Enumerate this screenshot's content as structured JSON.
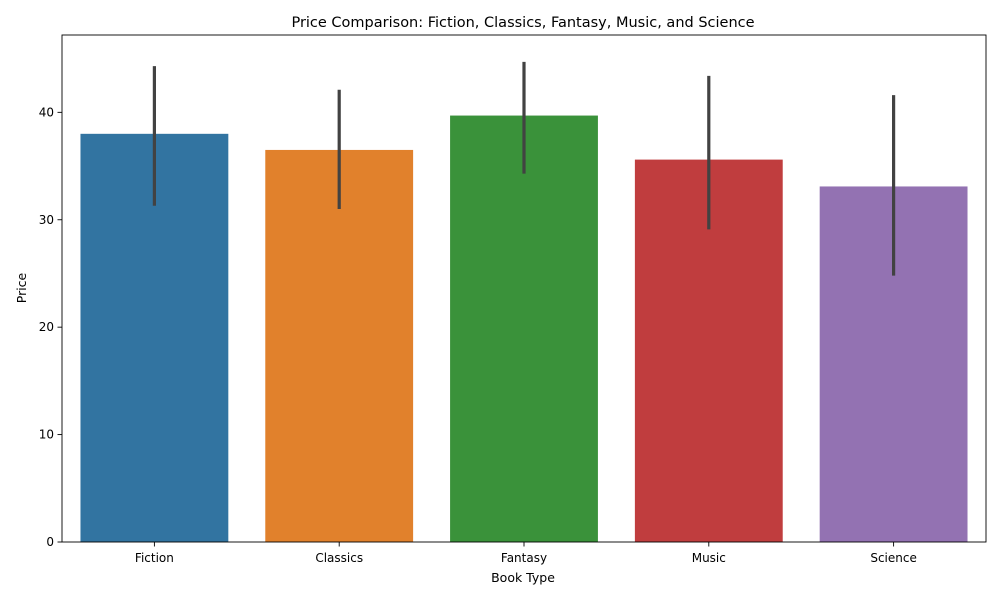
{
  "chart_data": {
    "type": "bar",
    "title": "Price Comparison: Fiction, Classics, Fantasy, Music, and Science",
    "xlabel": "Book Type",
    "ylabel": "Price",
    "categories": [
      "Fiction",
      "Classics",
      "Fantasy",
      "Music",
      "Science"
    ],
    "values": [
      38.0,
      36.5,
      39.7,
      35.6,
      33.1
    ],
    "error_bars": [
      {
        "low": 31.3,
        "high": 44.3
      },
      {
        "low": 31.0,
        "high": 42.1
      },
      {
        "low": 34.3,
        "high": 44.7
      },
      {
        "low": 29.1,
        "high": 43.4
      },
      {
        "low": 24.8,
        "high": 41.6
      }
    ],
    "colors": [
      "#3274a1",
      "#e1812c",
      "#3a923a",
      "#c03d3e",
      "#9372b2"
    ],
    "error_color": "#424242",
    "ylim": [
      0,
      47.2
    ],
    "yticks": [
      0,
      10,
      20,
      30,
      40
    ],
    "grid": false,
    "legend": "none"
  }
}
